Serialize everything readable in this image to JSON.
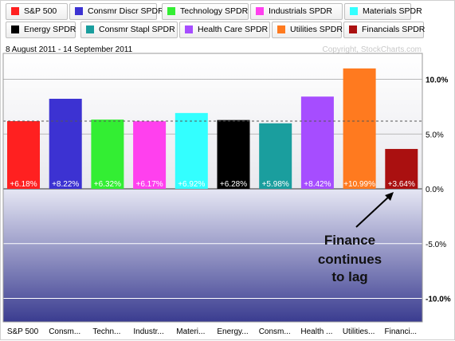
{
  "legend": [
    {
      "label": "S&P 500",
      "color": "#ff2020"
    },
    {
      "label": "Consmr Discr SPDR",
      "color": "#3c32d2"
    },
    {
      "label": "Technology SPDR",
      "color": "#33ee33"
    },
    {
      "label": "Industrials SPDR",
      "color": "#ff40ee"
    },
    {
      "label": "Materials SPDR",
      "color": "#33ffff"
    },
    {
      "label": "Energy SPDR",
      "color": "#000000"
    },
    {
      "label": "Consmr Stapl SPDR",
      "color": "#1a9e9e"
    },
    {
      "label": "Health Care SPDR",
      "color": "#a64dff"
    },
    {
      "label": "Utilities SPDR",
      "color": "#ff7a1f"
    },
    {
      "label": "Financials SPDR",
      "color": "#aa1010"
    }
  ],
  "header": {
    "date_range": "8 August 2011 - 14 September 2011",
    "copyright": "Copyright, StockCharts.com"
  },
  "annotation": {
    "lines": [
      "Finance",
      "continues",
      "to lag"
    ]
  },
  "chart_data": {
    "type": "bar",
    "categories": [
      "S&P 500",
      "Consm...",
      "Techn...",
      "Industr...",
      "Materi...",
      "Energy...",
      "Consm...",
      "Health ...",
      "Utilities...",
      "Financi..."
    ],
    "values": [
      6.18,
      8.22,
      6.32,
      6.17,
      6.92,
      6.28,
      5.98,
      8.42,
      10.99,
      3.64
    ],
    "value_labels": [
      "+6.18%",
      "+8.22%",
      "+6.32%",
      "+6.17%",
      "+6.92%",
      "+6.28%",
      "+5.98%",
      "+8.42%",
      "+10.99%",
      "+3.64%"
    ],
    "colors": [
      "#ff2020",
      "#3c32d2",
      "#33ee33",
      "#ff40ee",
      "#33ffff",
      "#000000",
      "#1a9e9e",
      "#a64dff",
      "#ff7a1f",
      "#aa1010"
    ],
    "y_ticks": [
      10,
      5,
      0,
      -5,
      -10
    ],
    "y_tick_labels": [
      "10.0%",
      "5.0%",
      "0.0%",
      "-5.0%",
      "-10.0%"
    ],
    "ylim": [
      -12.3,
      12.3
    ],
    "reference_line": 6.18,
    "grid": true,
    "negative_region_color": "#3a3c90"
  }
}
